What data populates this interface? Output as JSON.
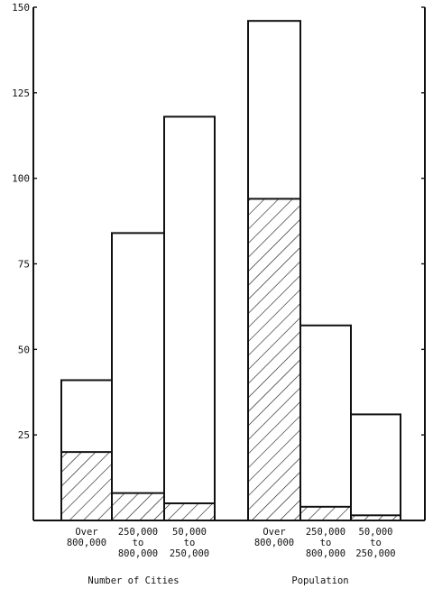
{
  "chart_data": {
    "type": "bar",
    "title": "",
    "xlabel": "",
    "ylabel": "",
    "ylim": [
      0,
      150
    ],
    "yticks": [
      25,
      50,
      75,
      100,
      125,
      150
    ],
    "stacked": true,
    "groups": [
      {
        "label": "Number of Cities",
        "categories": [
          [
            "Over",
            "800,000"
          ],
          [
            "250,000",
            "to",
            "800,000"
          ],
          [
            "50,000",
            "to",
            "250,000"
          ]
        ],
        "totals": [
          41,
          84,
          118
        ],
        "hatched": [
          20,
          8,
          5
        ]
      },
      {
        "label": "Population",
        "categories": [
          [
            "Over",
            "800,000"
          ],
          [
            "250,000",
            "to",
            "800,000"
          ],
          [
            "50,000",
            "to",
            "250,000"
          ]
        ],
        "totals": [
          146,
          57,
          31
        ],
        "hatched": [
          94,
          4,
          1.5
        ]
      }
    ]
  }
}
